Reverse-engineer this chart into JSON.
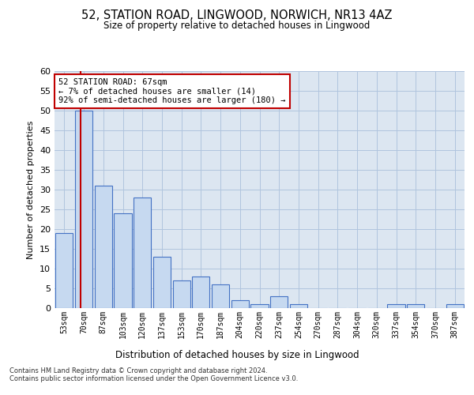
{
  "title1": "52, STATION ROAD, LINGWOOD, NORWICH, NR13 4AZ",
  "title2": "Size of property relative to detached houses in Lingwood",
  "xlabel": "Distribution of detached houses by size in Lingwood",
  "ylabel": "Number of detached properties",
  "bin_labels": [
    "53sqm",
    "70sqm",
    "87sqm",
    "103sqm",
    "120sqm",
    "137sqm",
    "153sqm",
    "170sqm",
    "187sqm",
    "204sqm",
    "220sqm",
    "237sqm",
    "254sqm",
    "270sqm",
    "287sqm",
    "304sqm",
    "320sqm",
    "337sqm",
    "354sqm",
    "370sqm",
    "387sqm"
  ],
  "values": [
    19,
    50,
    31,
    24,
    28,
    13,
    7,
    8,
    6,
    2,
    1,
    3,
    1,
    0,
    0,
    0,
    0,
    1,
    1,
    0,
    1
  ],
  "bar_color": "#c6d9f0",
  "bar_edge_color": "#4472c4",
  "grid_color": "#b0c4de",
  "background_color": "#dce6f1",
  "vline_x": 0.82,
  "vline_color": "#c00000",
  "annotation_text": "52 STATION ROAD: 67sqm\n← 7% of detached houses are smaller (14)\n92% of semi-detached houses are larger (180) →",
  "annotation_box_color": "#ffffff",
  "annotation_box_edge_color": "#c00000",
  "footer_text": "Contains HM Land Registry data © Crown copyright and database right 2024.\nContains public sector information licensed under the Open Government Licence v3.0.",
  "ylim": [
    0,
    60
  ],
  "yticks": [
    0,
    5,
    10,
    15,
    20,
    25,
    30,
    35,
    40,
    45,
    50,
    55,
    60
  ]
}
